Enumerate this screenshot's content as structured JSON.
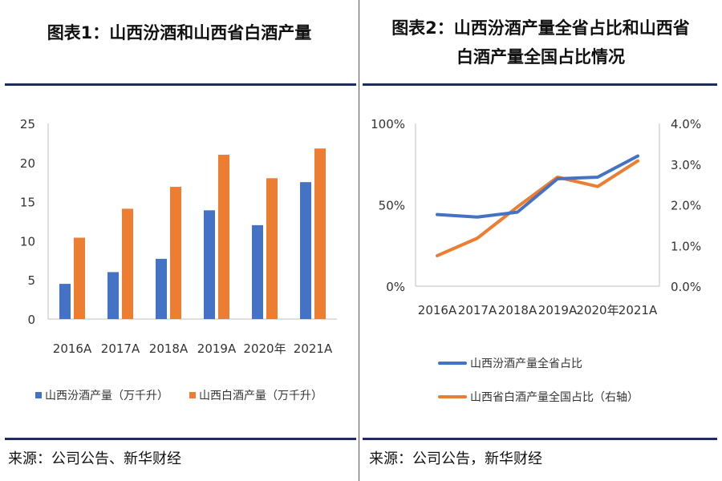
{
  "left": {
    "title": "图表1：山西汾酒和山西省白酒产量",
    "source": "来源：公司公告、新华财经"
  },
  "right": {
    "title_line1": "图表2：山西汾酒产量全省占比和山西省",
    "title_line2": "白酒产量全国占比情况",
    "source": "来源：公司公告，新华财经"
  },
  "colors": {
    "blue": "#4472C4",
    "orange": "#ED7D31",
    "rule": "#1f2d5a"
  },
  "chart_data": [
    {
      "type": "bar",
      "title": "图表1：山西汾酒和山西省白酒产量",
      "categories": [
        "2016A",
        "2017A",
        "2018A",
        "2019A",
        "2020年",
        "2021A"
      ],
      "ylim": [
        0,
        25
      ],
      "yticks": [
        "0",
        "5",
        "10",
        "15",
        "20",
        "25"
      ],
      "series": [
        {
          "name": "山西汾酒产量（万千升）",
          "color": "#4472C4",
          "values": [
            4.5,
            6.0,
            7.7,
            13.9,
            12.0,
            17.5
          ]
        },
        {
          "name": "山西白酒产量（万千升）",
          "color": "#ED7D31",
          "values": [
            10.4,
            14.1,
            16.9,
            21.0,
            18.0,
            21.8
          ]
        }
      ]
    },
    {
      "type": "line",
      "title": "图表2：山西汾酒产量全省占比和山西省白酒产量全国占比情况",
      "categories": [
        "2016A",
        "2017A",
        "2018A",
        "2019A",
        "2020年",
        "2021A"
      ],
      "left_axis": {
        "ylim": [
          0,
          100
        ],
        "ticks": [
          "0%",
          "50%",
          "100%"
        ]
      },
      "right_axis": {
        "ylim": [
          0,
          4
        ],
        "ticks": [
          "0.0%",
          "1.0%",
          "2.0%",
          "3.0%",
          "4.0%"
        ]
      },
      "series": [
        {
          "name": "山西汾酒产量全省占比",
          "axis": "left",
          "color": "#4472C4",
          "values": [
            44,
            42.5,
            45.5,
            66,
            67,
            80
          ]
        },
        {
          "name": "山西省白酒产量全国占比（右轴）",
          "axis": "right",
          "color": "#ED7D31",
          "values": [
            0.75,
            1.18,
            1.95,
            2.68,
            2.45,
            3.08
          ]
        }
      ]
    }
  ]
}
